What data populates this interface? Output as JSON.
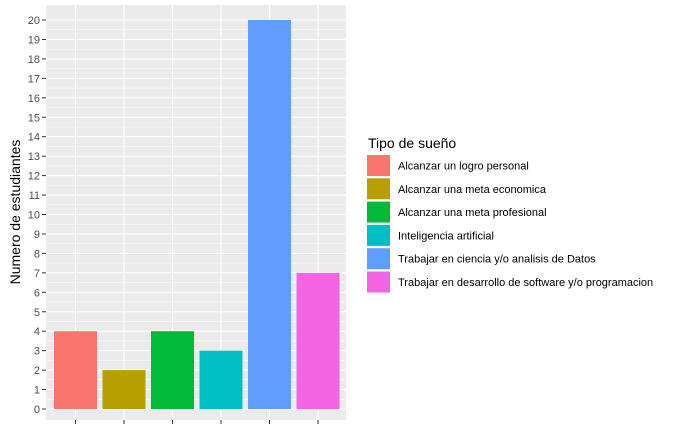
{
  "chart_data": {
    "type": "bar",
    "title": "",
    "xlabel": "",
    "ylabel": "Numero de estudiantes",
    "ylim": [
      0,
      20
    ],
    "ytick_step": 1,
    "grid": true,
    "legend_position": "right",
    "legend": {
      "title": "Tipo de sueño"
    },
    "categories": [
      "Alcanzar un logro personal",
      "Alcanzar una meta economica",
      "Alcanzar una meta profesional",
      "Inteligencia artificial",
      "Trabajar en ciencia y/o analisis de Datos",
      "Trabajar en desarrollo de software y/o programacion"
    ],
    "values": [
      4,
      2,
      4,
      3,
      20,
      7
    ],
    "colors": [
      "#F8766D",
      "#B79F00",
      "#00BA38",
      "#00BFC4",
      "#619CFF",
      "#F564E3"
    ],
    "panel_background": "#EBEBEB",
    "gridline_color": "#FFFFFF"
  }
}
